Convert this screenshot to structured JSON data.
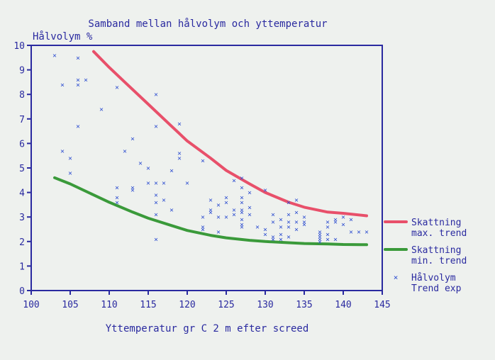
{
  "chart_data": {
    "type": "scatter",
    "title": "Samband mellan hålvolym och yttemperatur",
    "ylabel": "Hålvolym %",
    "xlabel": "Yttemperatur gr C 2 m efter screed",
    "xlim": [
      100,
      145
    ],
    "ylim": [
      0,
      10
    ],
    "x_ticks": [
      100,
      105,
      110,
      115,
      120,
      125,
      130,
      135,
      140,
      145
    ],
    "y_ticks": [
      0,
      1,
      2,
      3,
      4,
      5,
      6,
      7,
      8,
      9,
      10
    ],
    "grid": false,
    "legend_position": "right",
    "series": [
      {
        "name": "Skattning max. trend",
        "kind": "line",
        "color": "#e8506a",
        "points": [
          [
            108,
            9.75
          ],
          [
            110,
            9.1
          ],
          [
            112,
            8.5
          ],
          [
            115,
            7.6
          ],
          [
            118,
            6.7
          ],
          [
            120,
            6.1
          ],
          [
            123,
            5.4
          ],
          [
            125,
            4.9
          ],
          [
            128,
            4.35
          ],
          [
            130,
            4.0
          ],
          [
            133,
            3.6
          ],
          [
            135,
            3.4
          ],
          [
            138,
            3.2
          ],
          [
            140,
            3.15
          ],
          [
            143,
            3.05
          ]
        ]
      },
      {
        "name": "Skattning min. trend",
        "kind": "line",
        "color": "#3a9a3a",
        "points": [
          [
            103,
            4.6
          ],
          [
            105,
            4.35
          ],
          [
            108,
            3.9
          ],
          [
            110,
            3.6
          ],
          [
            113,
            3.2
          ],
          [
            115,
            2.95
          ],
          [
            118,
            2.65
          ],
          [
            120,
            2.45
          ],
          [
            123,
            2.25
          ],
          [
            125,
            2.15
          ],
          [
            128,
            2.05
          ],
          [
            130,
            2.0
          ],
          [
            133,
            1.95
          ],
          [
            135,
            1.92
          ],
          [
            138,
            1.9
          ],
          [
            140,
            1.88
          ],
          [
            143,
            1.87
          ]
        ]
      },
      {
        "name": "Hålvolym Trend exp",
        "kind": "scatter",
        "color": "#3050d0",
        "points": [
          [
            103,
            9.6
          ],
          [
            104,
            8.4
          ],
          [
            104,
            5.7
          ],
          [
            105,
            5.4
          ],
          [
            105,
            4.8
          ],
          [
            106,
            9.5
          ],
          [
            106,
            8.6
          ],
          [
            106,
            8.4
          ],
          [
            106,
            6.7
          ],
          [
            107,
            8.6
          ],
          [
            109,
            7.4
          ],
          [
            111,
            8.3
          ],
          [
            111,
            4.2
          ],
          [
            111,
            3.8
          ],
          [
            111,
            3.6
          ],
          [
            112,
            5.7
          ],
          [
            113,
            6.2
          ],
          [
            113,
            4.2
          ],
          [
            113,
            4.1
          ],
          [
            114,
            5.2
          ],
          [
            115,
            5.0
          ],
          [
            115,
            4.4
          ],
          [
            116,
            8.0
          ],
          [
            116,
            6.7
          ],
          [
            116,
            4.4
          ],
          [
            116,
            3.9
          ],
          [
            116,
            3.6
          ],
          [
            116,
            3.1
          ],
          [
            116,
            2.1
          ],
          [
            117,
            4.4
          ],
          [
            117,
            3.7
          ],
          [
            118,
            4.9
          ],
          [
            118,
            3.3
          ],
          [
            119,
            6.8
          ],
          [
            119,
            5.6
          ],
          [
            119,
            5.4
          ],
          [
            120,
            4.4
          ],
          [
            122,
            5.3
          ],
          [
            122,
            3.0
          ],
          [
            122,
            2.6
          ],
          [
            122,
            2.5
          ],
          [
            123,
            3.7
          ],
          [
            123,
            3.3
          ],
          [
            123,
            3.2
          ],
          [
            124,
            3.5
          ],
          [
            124,
            3.0
          ],
          [
            124,
            2.4
          ],
          [
            125,
            3.8
          ],
          [
            125,
            3.6
          ],
          [
            125,
            3.0
          ],
          [
            126,
            4.5
          ],
          [
            126,
            3.3
          ],
          [
            126,
            3.1
          ],
          [
            127,
            4.6
          ],
          [
            127,
            4.2
          ],
          [
            127,
            3.8
          ],
          [
            127,
            3.6
          ],
          [
            127,
            3.3
          ],
          [
            127,
            3.2
          ],
          [
            127,
            2.9
          ],
          [
            127,
            2.7
          ],
          [
            127,
            2.6
          ],
          [
            128,
            4.0
          ],
          [
            128,
            3.4
          ],
          [
            128,
            3.1
          ],
          [
            129,
            2.6
          ],
          [
            130,
            4.1
          ],
          [
            130,
            2.5
          ],
          [
            130,
            2.3
          ],
          [
            131,
            3.1
          ],
          [
            131,
            2.8
          ],
          [
            131,
            2.2
          ],
          [
            131,
            2.1
          ],
          [
            132,
            2.9
          ],
          [
            132,
            2.6
          ],
          [
            132,
            2.3
          ],
          [
            132,
            2.1
          ],
          [
            133,
            3.6
          ],
          [
            133,
            3.1
          ],
          [
            133,
            2.8
          ],
          [
            133,
            2.6
          ],
          [
            133,
            2.2
          ],
          [
            134,
            3.7
          ],
          [
            134,
            3.2
          ],
          [
            134,
            2.8
          ],
          [
            134,
            2.5
          ],
          [
            135,
            3.0
          ],
          [
            135,
            2.8
          ],
          [
            135,
            2.7
          ],
          [
            137,
            2.4
          ],
          [
            137,
            2.3
          ],
          [
            137,
            2.2
          ],
          [
            137,
            2.1
          ],
          [
            137,
            2.0
          ],
          [
            138,
            2.8
          ],
          [
            138,
            2.6
          ],
          [
            138,
            2.3
          ],
          [
            138,
            2.1
          ],
          [
            139,
            2.9
          ],
          [
            139,
            2.8
          ],
          [
            139,
            2.1
          ],
          [
            140,
            3.0
          ],
          [
            140,
            2.7
          ],
          [
            141,
            2.9
          ],
          [
            141,
            2.4
          ],
          [
            142,
            2.4
          ],
          [
            143,
            2.4
          ]
        ]
      }
    ],
    "legend": [
      {
        "lines": [
          "Skattning",
          "max. trend"
        ],
        "color": "#e8506a",
        "marker": "line"
      },
      {
        "lines": [
          "Skattning",
          "min. trend"
        ],
        "color": "#3a9a3a",
        "marker": "line"
      },
      {
        "lines": [
          "Hålvolym",
          "Trend exp"
        ],
        "color": "#3050d0",
        "marker": "x"
      }
    ],
    "colors": {
      "axis": "#2a2aa0",
      "text": "#2a2aa0",
      "background": "#eef1ee"
    }
  }
}
